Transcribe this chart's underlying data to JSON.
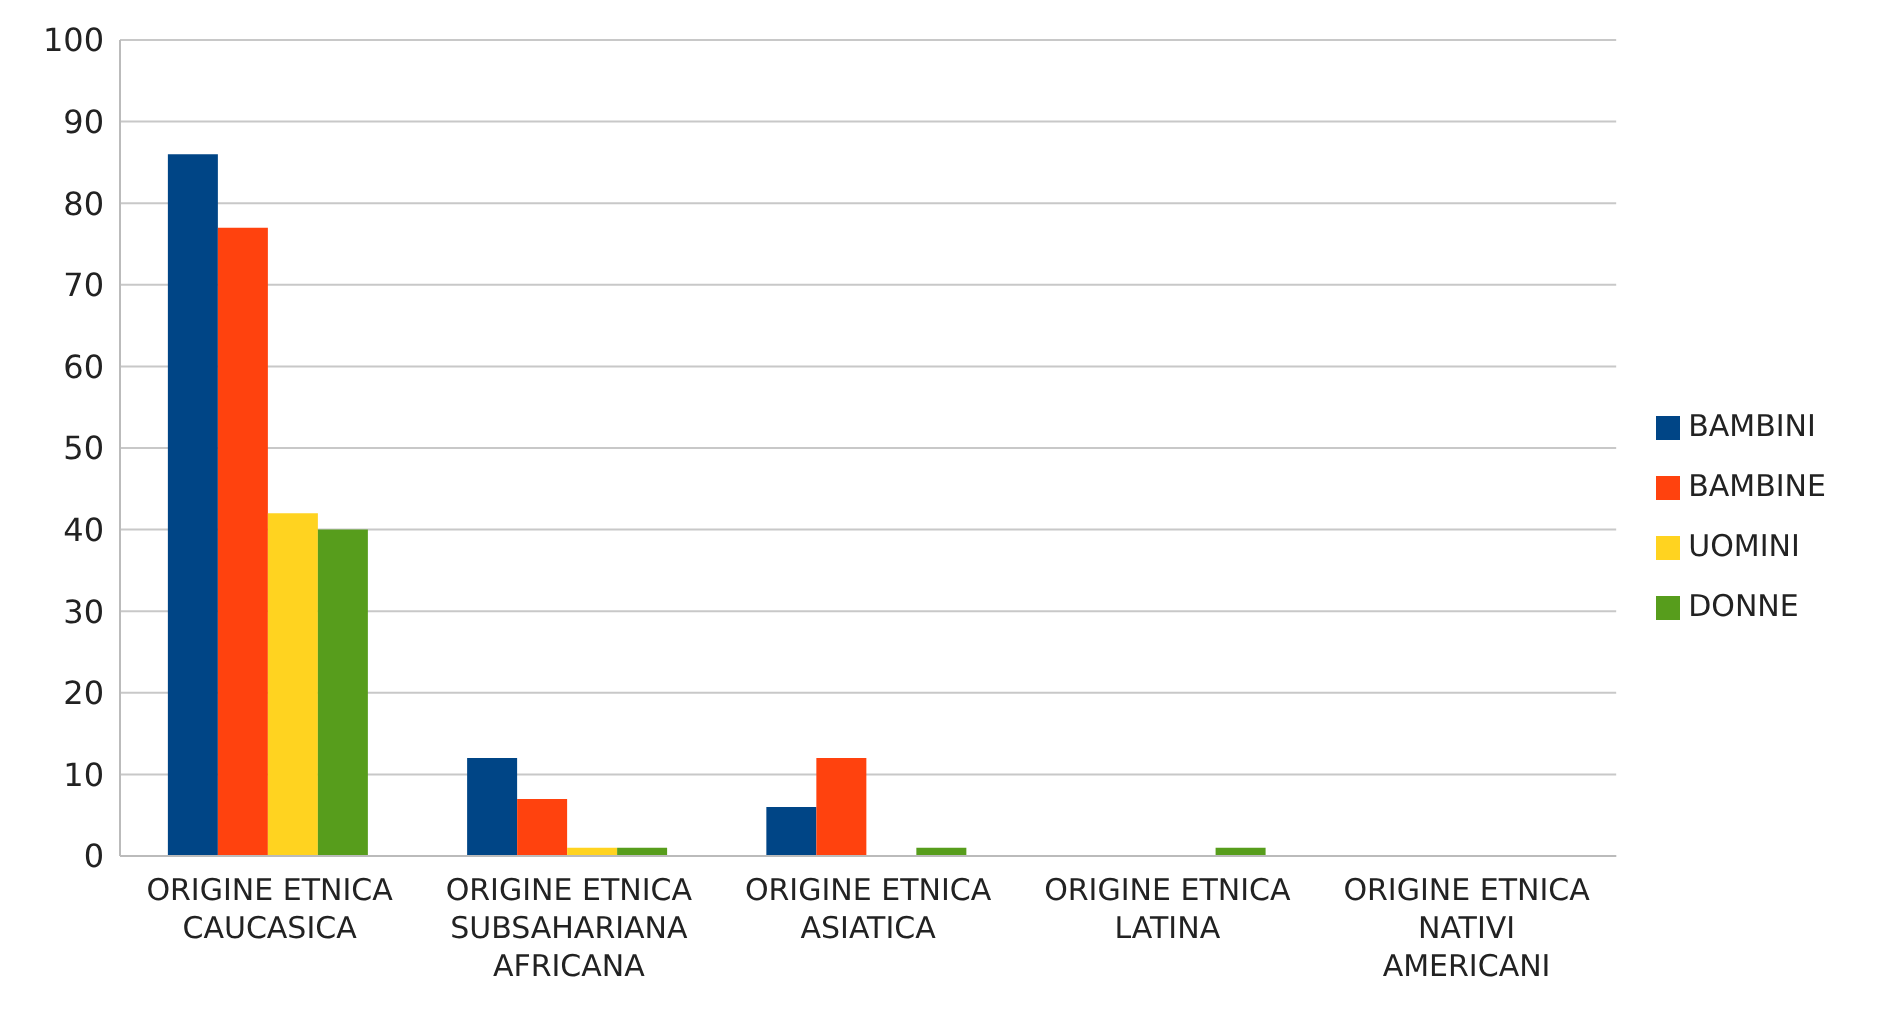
{
  "chart_data": {
    "type": "bar",
    "categories": [
      "ORIGINE ETNICA CAUCASICA",
      "ORIGINE ETNICA SUBSAHARIANA AFRICANA",
      "ORIGINE ETNICA ASIATICA",
      "ORIGINE ETNICA LATINA",
      "ORIGINE ETNICA NATIVI AMERICANI"
    ],
    "series": [
      {
        "name": "BAMBINI",
        "color": "#004586",
        "values": [
          86,
          12,
          6,
          0,
          0
        ]
      },
      {
        "name": "BAMBINE",
        "color": "#ff420e",
        "values": [
          77,
          7,
          12,
          0,
          0
        ]
      },
      {
        "name": "UOMINI",
        "color": "#ffd320",
        "values": [
          42,
          1,
          0,
          0,
          0
        ]
      },
      {
        "name": "DONNE",
        "color": "#579d1c",
        "values": [
          40,
          1,
          1,
          1,
          0
        ]
      }
    ],
    "ylim": [
      0,
      100
    ],
    "yticks": [
      0,
      10,
      20,
      30,
      40,
      50,
      60,
      70,
      80,
      90,
      100
    ],
    "grid": "y",
    "legend": "right"
  }
}
